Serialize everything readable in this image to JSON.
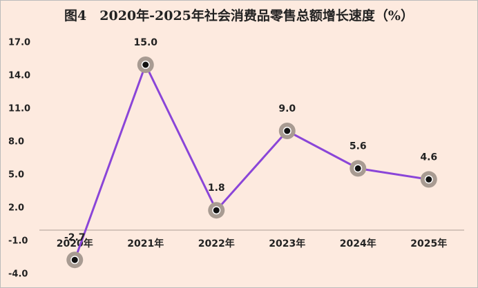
{
  "chart_data": {
    "type": "line",
    "title": "图4　2020年-2025年社会消费品零售总额增长速度（%）",
    "categories": [
      "2020年",
      "2021年",
      "2022年",
      "2023年",
      "2024年",
      "2025年"
    ],
    "series": [
      {
        "color": "#8a45d8",
        "values": [
          -2.7,
          15.0,
          1.8,
          9.0,
          5.6,
          4.6
        ],
        "value_labels": [
          "-2.7",
          "15.0",
          "1.8",
          "9.0",
          "5.6",
          "4.6"
        ]
      }
    ],
    "ylim": [
      -4,
      17
    ],
    "yticks": [
      {
        "value": -4,
        "label": "-4.0"
      },
      {
        "value": -1,
        "label": "-1.0"
      },
      {
        "value": 2,
        "label": "2.0"
      },
      {
        "value": 5,
        "label": "5.0"
      },
      {
        "value": 8,
        "label": "8.0"
      },
      {
        "value": 11,
        "label": "11.0"
      },
      {
        "value": 14,
        "label": "14.0"
      },
      {
        "value": 17,
        "label": "17.0"
      }
    ]
  }
}
